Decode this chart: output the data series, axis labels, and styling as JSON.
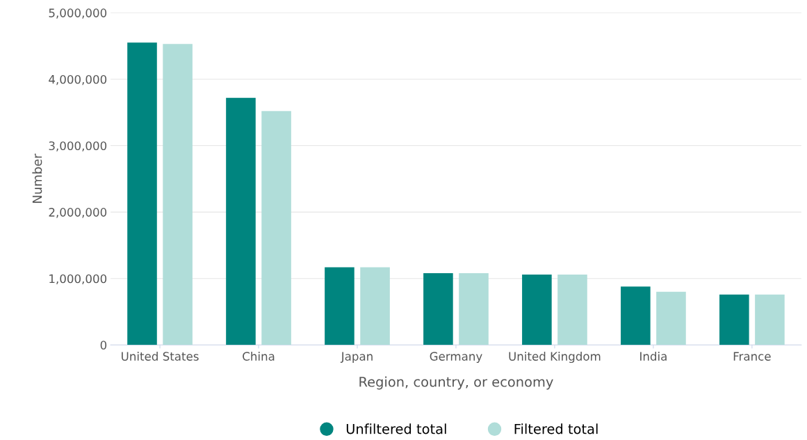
{
  "chart_data": {
    "type": "bar",
    "xlabel": "Region, country, or economy",
    "ylabel": "Number",
    "categories": [
      "United States",
      "China",
      "Japan",
      "Germany",
      "United Kingdom",
      "India",
      "France"
    ],
    "series": [
      {
        "name": "Unfiltered total",
        "color": "#00857f",
        "values": [
          4550000,
          3720000,
          1170000,
          1080000,
          1060000,
          880000,
          760000
        ]
      },
      {
        "name": "Filtered total",
        "color": "#b0ddd9",
        "values": [
          4530000,
          3520000,
          1170000,
          1080000,
          1060000,
          800000,
          760000
        ]
      }
    ],
    "ylim": [
      0,
      5000000
    ],
    "yticks": [
      {
        "value": 0,
        "label": "0"
      },
      {
        "value": 1000000,
        "label": "1,000,000"
      },
      {
        "value": 2000000,
        "label": "2,000,000"
      },
      {
        "value": 3000000,
        "label": "3,000,000"
      },
      {
        "value": 4000000,
        "label": "4,000,000"
      },
      {
        "value": 5000000,
        "label": "5,000,000"
      }
    ],
    "grid": "y",
    "legend": "bottom",
    "marker": "circle"
  }
}
